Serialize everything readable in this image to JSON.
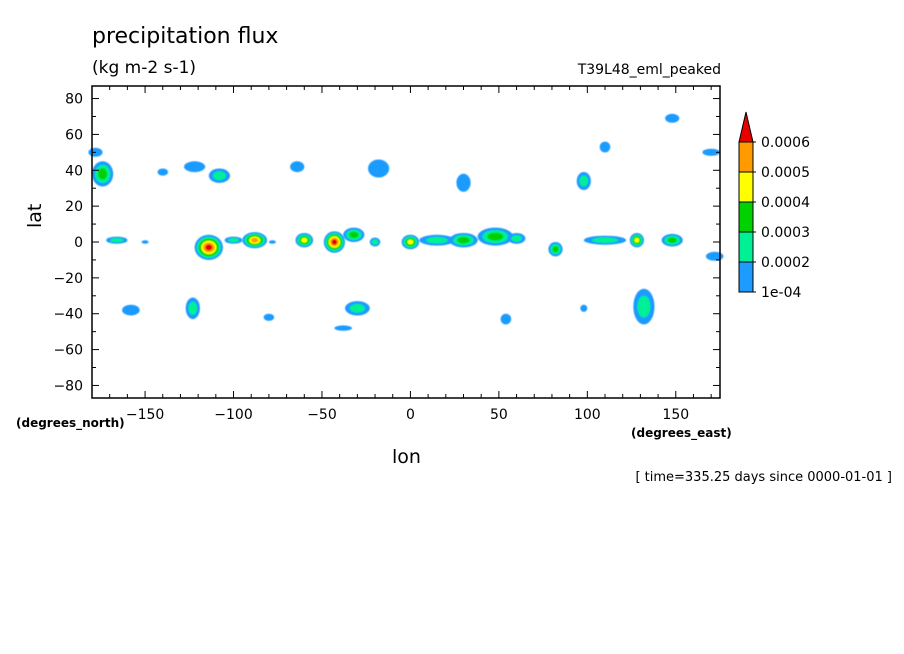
{
  "title": "precipitation flux",
  "units": "(kg m-2 s-1)",
  "experiment": "T39L48_eml_peaked",
  "time_label": "[ time=335.25 days since 0000-01-01 ]",
  "colors": {
    "level1": "#1E9BFF",
    "level2": "#00F096",
    "level3": "#00D200",
    "level4": "#FFFF00",
    "level5": "#FF9B00",
    "level6": "#E60000"
  },
  "chart_data": {
    "type": "heatmap",
    "title": "precipitation flux",
    "xlabel": "lon",
    "ylabel": "lat",
    "xunits": "(degrees_east)",
    "yunits": "(degrees_north)",
    "xlim": [
      -180,
      175
    ],
    "ylim": [
      -87,
      87
    ],
    "xticks": [
      -150,
      -100,
      -50,
      0,
      50,
      100,
      150
    ],
    "yticks": [
      80,
      60,
      40,
      20,
      0,
      -20,
      -40,
      -60,
      -80
    ],
    "colorbar": {
      "levels": [
        "0.0006",
        "0.0005",
        "0.0004",
        "0.0003",
        "0.0002",
        "1e-04"
      ],
      "colors": [
        "#E60000",
        "#FF9B00",
        "#FFFF00",
        "#00D200",
        "#00F096",
        "#1E9BFF"
      ],
      "extend": "max"
    },
    "blobs": [
      {
        "lon": -174,
        "lat": 38,
        "w": 12,
        "h": 14,
        "level": 3
      },
      {
        "lon": -178,
        "lat": 50,
        "w": 8,
        "h": 5,
        "level": 1
      },
      {
        "lon": -166,
        "lat": 1,
        "w": 12,
        "h": 4,
        "level": 2
      },
      {
        "lon": -150,
        "lat": 0,
        "w": 4,
        "h": 2,
        "level": 1
      },
      {
        "lon": -158,
        "lat": -38,
        "w": 10,
        "h": 6,
        "level": 1
      },
      {
        "lon": -140,
        "lat": 39,
        "w": 6,
        "h": 4,
        "level": 1
      },
      {
        "lon": -122,
        "lat": 42,
        "w": 12,
        "h": 6,
        "level": 1
      },
      {
        "lon": -108,
        "lat": 37,
        "w": 12,
        "h": 8,
        "level": 2
      },
      {
        "lon": -123,
        "lat": -37,
        "w": 8,
        "h": 12,
        "level": 2
      },
      {
        "lon": -114,
        "lat": -3,
        "w": 16,
        "h": 14,
        "level": 6
      },
      {
        "lon": -100,
        "lat": 1,
        "w": 10,
        "h": 4,
        "level": 2
      },
      {
        "lon": -88,
        "lat": 1,
        "w": 14,
        "h": 9,
        "level": 5
      },
      {
        "lon": -78,
        "lat": 0,
        "w": 4,
        "h": 2,
        "level": 1
      },
      {
        "lon": -60,
        "lat": 1,
        "w": 10,
        "h": 8,
        "level": 4
      },
      {
        "lon": -64,
        "lat": 42,
        "w": 8,
        "h": 6,
        "level": 1
      },
      {
        "lon": -43,
        "lat": 0,
        "w": 12,
        "h": 12,
        "level": 6
      },
      {
        "lon": -32,
        "lat": 4,
        "w": 12,
        "h": 8,
        "level": 3
      },
      {
        "lon": -20,
        "lat": 0,
        "w": 6,
        "h": 5,
        "level": 2
      },
      {
        "lon": -18,
        "lat": 41,
        "w": 12,
        "h": 10,
        "level": 1
      },
      {
        "lon": -30,
        "lat": -37,
        "w": 14,
        "h": 8,
        "level": 2
      },
      {
        "lon": -38,
        "lat": -48,
        "w": 10,
        "h": 3,
        "level": 1
      },
      {
        "lon": -80,
        "lat": -42,
        "w": 6,
        "h": 4,
        "level": 1
      },
      {
        "lon": 0,
        "lat": 0,
        "w": 10,
        "h": 8,
        "level": 4
      },
      {
        "lon": 15,
        "lat": 1,
        "w": 20,
        "h": 6,
        "level": 2
      },
      {
        "lon": 30,
        "lat": 1,
        "w": 16,
        "h": 8,
        "level": 3
      },
      {
        "lon": 48,
        "lat": 3,
        "w": 20,
        "h": 10,
        "level": 3
      },
      {
        "lon": 60,
        "lat": 2,
        "w": 10,
        "h": 6,
        "level": 2
      },
      {
        "lon": 30,
        "lat": 33,
        "w": 8,
        "h": 10,
        "level": 1
      },
      {
        "lon": 54,
        "lat": -43,
        "w": 6,
        "h": 6,
        "level": 1
      },
      {
        "lon": 82,
        "lat": -4,
        "w": 8,
        "h": 8,
        "level": 3
      },
      {
        "lon": 98,
        "lat": 34,
        "w": 8,
        "h": 10,
        "level": 2
      },
      {
        "lon": 110,
        "lat": 1,
        "w": 24,
        "h": 5,
        "level": 2
      },
      {
        "lon": 128,
        "lat": 1,
        "w": 8,
        "h": 8,
        "level": 4
      },
      {
        "lon": 148,
        "lat": 1,
        "w": 12,
        "h": 7,
        "level": 3
      },
      {
        "lon": 132,
        "lat": -36,
        "w": 12,
        "h": 20,
        "level": 2
      },
      {
        "lon": 98,
        "lat": -37,
        "w": 4,
        "h": 4,
        "level": 1
      },
      {
        "lon": 110,
        "lat": 53,
        "w": 6,
        "h": 6,
        "level": 1
      },
      {
        "lon": 148,
        "lat": 69,
        "w": 8,
        "h": 5,
        "level": 1
      },
      {
        "lon": 170,
        "lat": 50,
        "w": 10,
        "h": 4,
        "level": 1
      },
      {
        "lon": 172,
        "lat": -8,
        "w": 10,
        "h": 5,
        "level": 1
      }
    ]
  }
}
